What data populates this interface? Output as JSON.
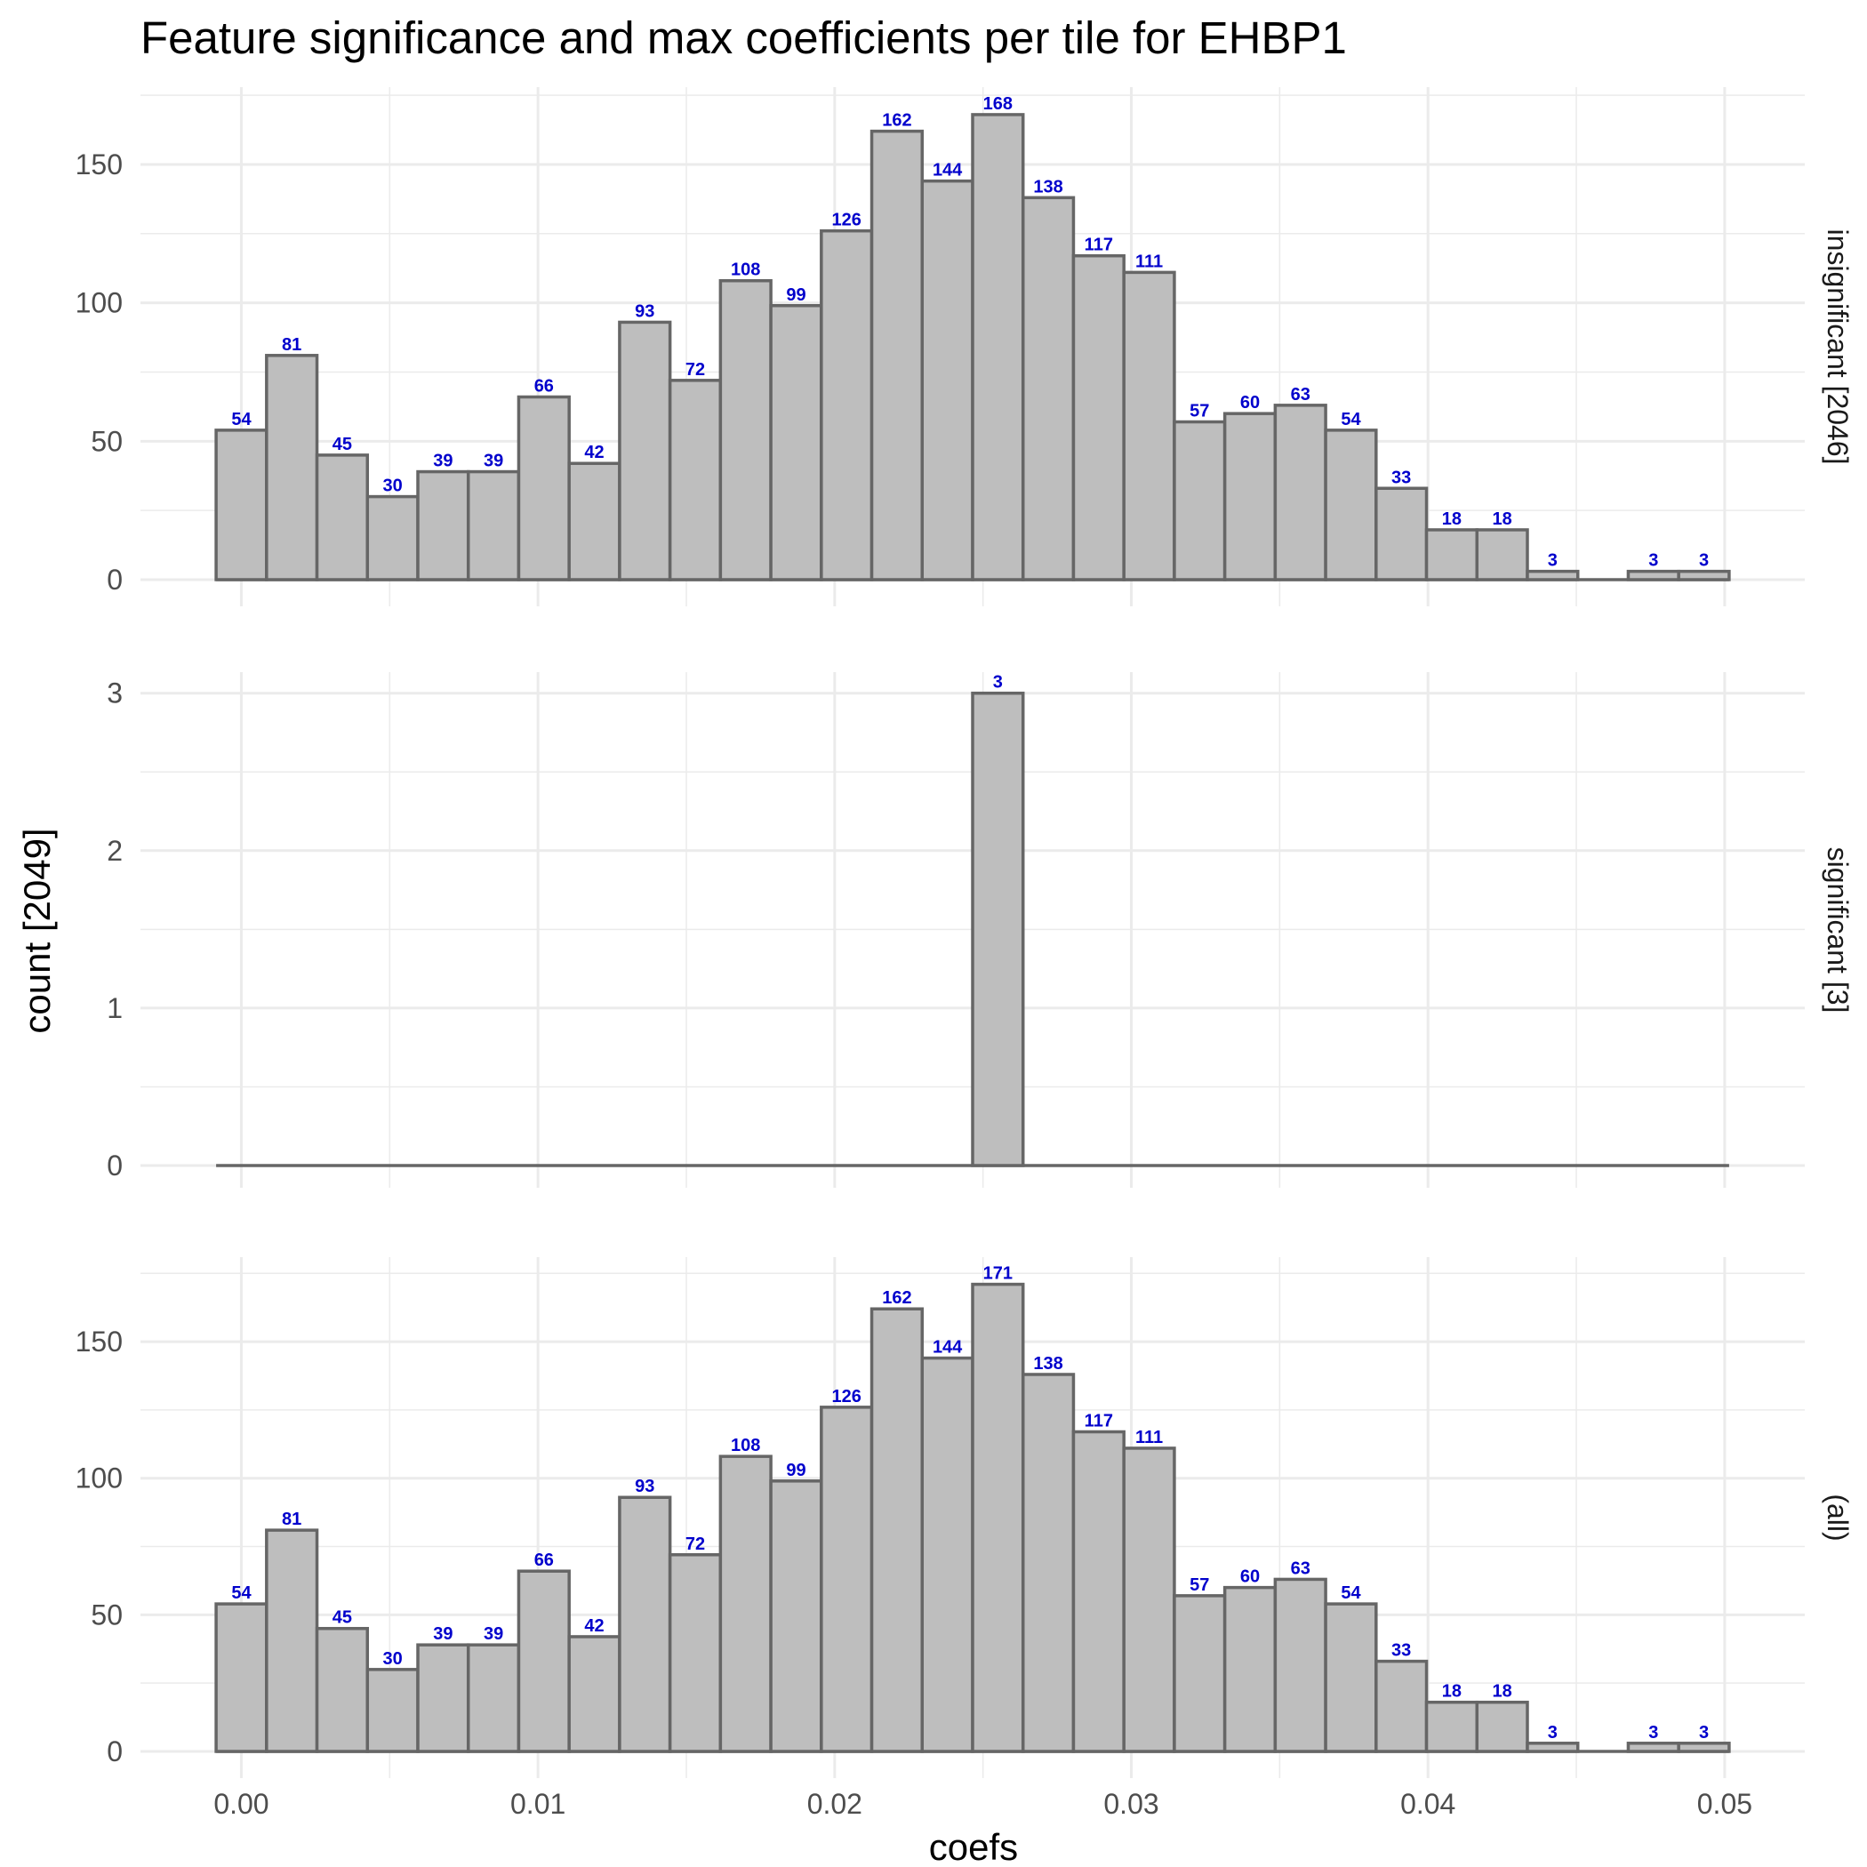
{
  "chart_data": {
    "type": "bar",
    "title": "Feature significance and max coefficients per tile for EHBP1",
    "xlabel": "coefs",
    "ylabel": "count [2049]",
    "x_ticks": [
      "0.00",
      "0.01",
      "0.02",
      "0.03",
      "0.04",
      "0.05"
    ],
    "x_tick_values": [
      0.0,
      0.01,
      0.02,
      0.03,
      0.04,
      0.05
    ],
    "xlim": [
      -0.0034,
      0.0527
    ],
    "bin_width": 0.0017,
    "bin_centers": [
      0.0,
      0.0017,
      0.0034,
      0.0051,
      0.0068,
      0.0085,
      0.0102,
      0.0119,
      0.0136,
      0.0153,
      0.017,
      0.0187,
      0.0204,
      0.0221,
      0.0238,
      0.0255,
      0.0272,
      0.0289,
      0.0306,
      0.0323,
      0.034,
      0.0357,
      0.0374,
      0.0391,
      0.0408,
      0.0425,
      0.0442,
      0.0459,
      0.0476,
      0.0493
    ],
    "grid": true,
    "legend": "none",
    "facets": [
      {
        "label": "insignificant [2046]",
        "ylim": [
          0,
          176
        ],
        "y_ticks": [
          0,
          50,
          100,
          150
        ],
        "values": [
          54,
          81,
          45,
          30,
          39,
          39,
          66,
          42,
          93,
          72,
          108,
          99,
          126,
          162,
          144,
          168,
          138,
          117,
          111,
          57,
          60,
          63,
          54,
          33,
          18,
          18,
          3,
          0,
          3,
          3
        ]
      },
      {
        "label": "significant [3]",
        "ylim": [
          0,
          3.1
        ],
        "y_ticks": [
          0,
          1,
          2,
          3
        ],
        "values": [
          0,
          0,
          0,
          0,
          0,
          0,
          0,
          0,
          0,
          0,
          0,
          0,
          0,
          0,
          0,
          3,
          0,
          0,
          0,
          0,
          0,
          0,
          0,
          0,
          0,
          0,
          0,
          0,
          0,
          0
        ]
      },
      {
        "label": "(all)",
        "ylim": [
          0,
          179
        ],
        "y_ticks": [
          0,
          50,
          100,
          150
        ],
        "values": [
          54,
          81,
          45,
          30,
          39,
          39,
          66,
          42,
          93,
          72,
          108,
          99,
          126,
          162,
          144,
          171,
          138,
          117,
          111,
          57,
          60,
          63,
          54,
          33,
          18,
          18,
          3,
          0,
          3,
          3
        ]
      }
    ],
    "colors": {
      "bar_fill": "#bebebe",
      "bar_outline": "#666666",
      "bar_label": "#0000cc",
      "grid": "#ebebeb"
    }
  }
}
